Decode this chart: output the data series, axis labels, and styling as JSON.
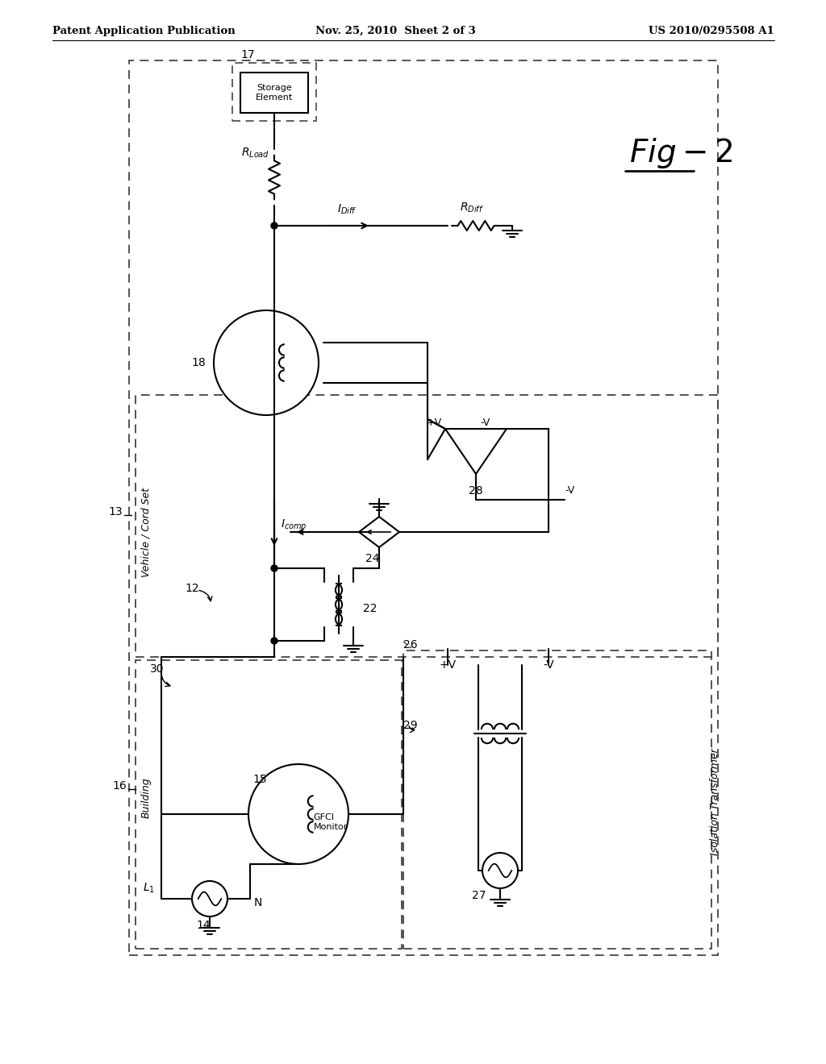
{
  "title_left": "Patent Application Publication",
  "title_mid": "Nov. 25, 2010  Sheet 2 of 3",
  "title_right": "US 2010/0295508 A1",
  "fig_label": "Fig-2",
  "background": "#ffffff",
  "line_color": "#000000"
}
